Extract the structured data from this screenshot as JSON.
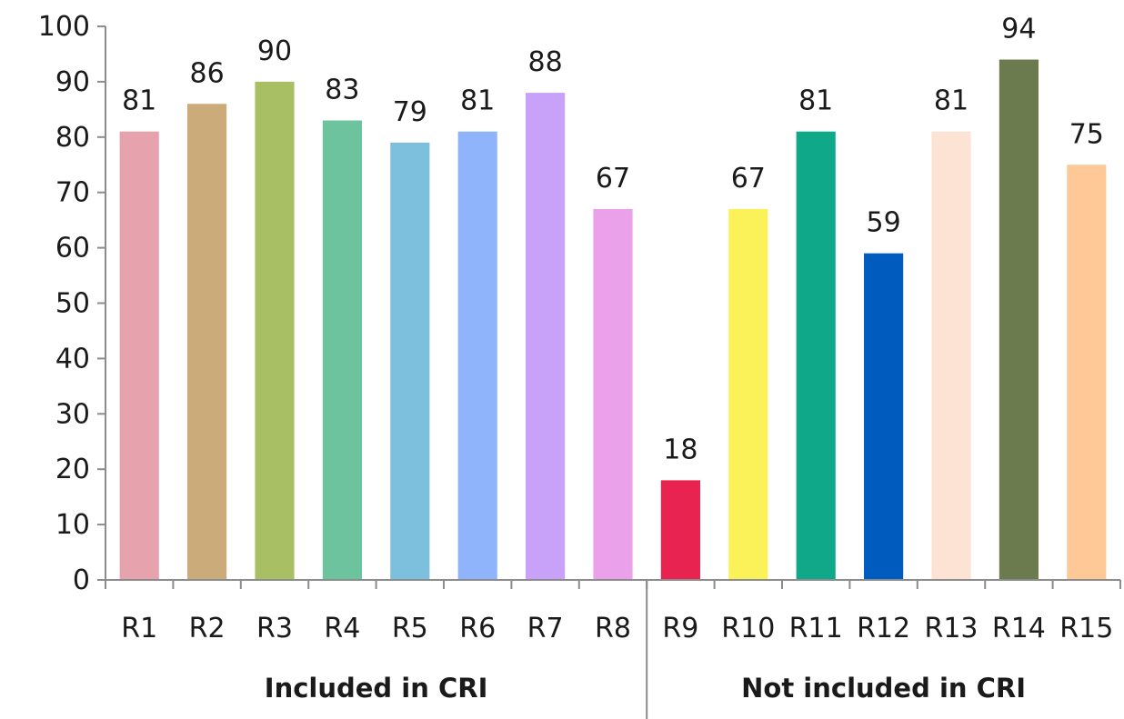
{
  "chart_data": {
    "type": "bar",
    "categories": [
      "R1",
      "R2",
      "R3",
      "R4",
      "R5",
      "R6",
      "R7",
      "R8",
      "R9",
      "R10",
      "R11",
      "R12",
      "R13",
      "R14",
      "R15"
    ],
    "values": [
      81,
      86,
      90,
      83,
      79,
      81,
      88,
      67,
      18,
      67,
      81,
      59,
      81,
      94,
      75
    ],
    "colors": [
      "#e6a3ad",
      "#cbab7a",
      "#a9bf63",
      "#6cc39d",
      "#7cc0de",
      "#8fb4fb",
      "#c8a1f9",
      "#eaa1ea",
      "#e8234f",
      "#fbf25a",
      "#0fa889",
      "#005bbf",
      "#fde3d4",
      "#6b7b4d",
      "#fec996"
    ],
    "groups": [
      {
        "label": "Included in CRI",
        "categories": [
          "R1",
          "R2",
          "R3",
          "R4",
          "R5",
          "R6",
          "R7",
          "R8"
        ]
      },
      {
        "label": "Not included in CRI",
        "categories": [
          "R9",
          "R10",
          "R11",
          "R12",
          "R13",
          "R14",
          "R15"
        ]
      }
    ],
    "yticks": [
      0,
      10,
      20,
      30,
      40,
      50,
      60,
      70,
      80,
      90,
      100
    ],
    "ylim": [
      0,
      100
    ],
    "title": "",
    "xlabel": "",
    "ylabel": "",
    "grid": false,
    "data_labels": true
  }
}
